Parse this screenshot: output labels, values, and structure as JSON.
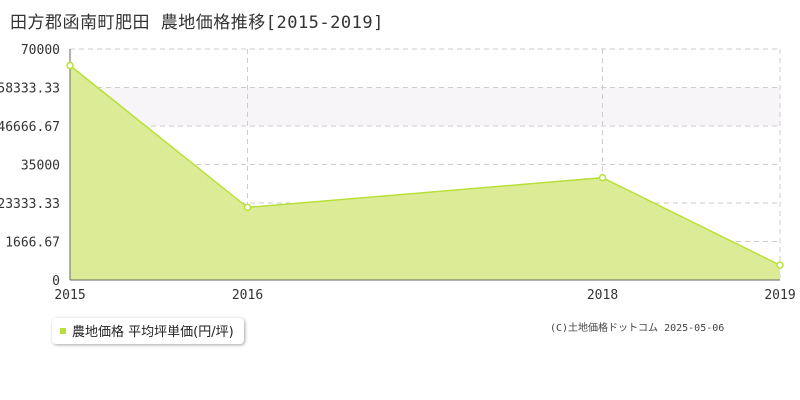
{
  "title": "田方郡函南町肥田 農地価格推移[2015-2019]",
  "legend": {
    "label": "農地価格 平均坪単価(円/坪)"
  },
  "credit": "(C)土地価格ドットコム 2025-05-06",
  "colors": {
    "fill": "#dcec96",
    "line": "#b8e03a",
    "grid": "#cccccc",
    "band": "#f7f5f7",
    "axis": "#333333"
  },
  "chart_data": {
    "type": "area",
    "x": [
      2015,
      2016,
      2018,
      2019
    ],
    "series": [
      {
        "name": "農地価格 平均坪単価(円/坪)",
        "values": [
          65000,
          22000,
          31000,
          4500
        ]
      }
    ],
    "xlim": [
      2015,
      2019
    ],
    "ylim": [
      0,
      70000
    ],
    "y_ticks": [
      "0",
      "1666.67",
      "23333.33",
      "35000",
      "46666.67",
      "58333.33",
      "70000"
    ],
    "x_ticks": [
      "2015",
      "2016",
      "2018",
      "2019"
    ],
    "grid": true,
    "legend_position": "bottom-left"
  }
}
